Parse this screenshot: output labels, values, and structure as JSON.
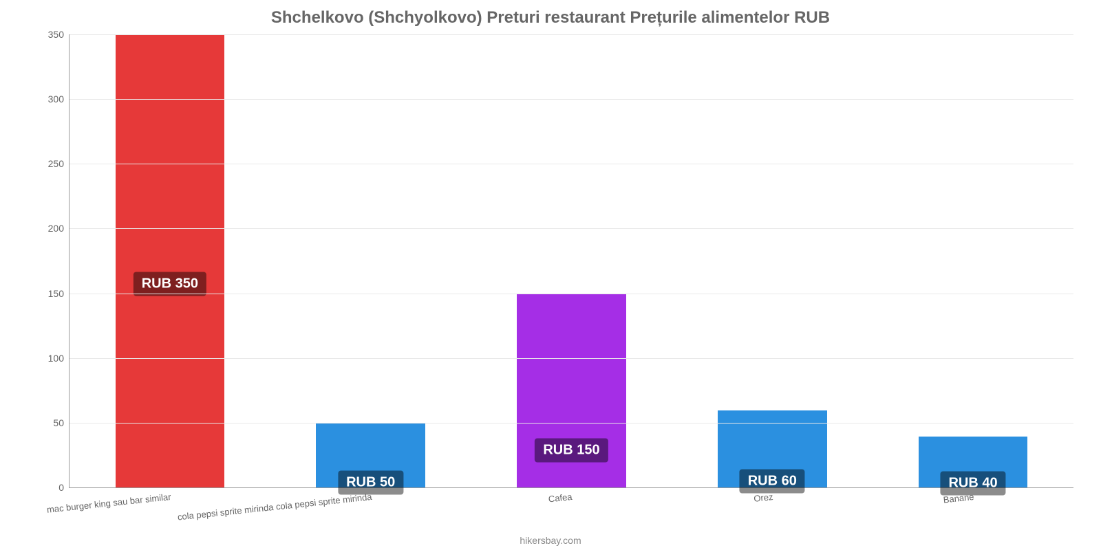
{
  "chart": {
    "type": "bar",
    "title": "Shchelkovo (Shchyolkovo) Preturi restaurant Prețurile alimentelor RUB",
    "title_color": "#666666",
    "title_fontsize": 24,
    "background_color": "#ffffff",
    "ylim": [
      0,
      350
    ],
    "ytick_step": 50,
    "ytick_labels": [
      "0",
      "50",
      "100",
      "150",
      "200",
      "250",
      "300",
      "350"
    ],
    "grid_color": "#e8e8e8",
    "axis_color": "#999999",
    "bar_width_ratio": 0.55,
    "value_label_fontsize": 20,
    "value_label_bg": "rgba(0,0,0,0.45)",
    "value_label_color": "#ffffff",
    "xtick_fontsize": 13,
    "xtick_color": "#666666",
    "xtick_rotate_deg": -6,
    "categories": [
      {
        "label": "mac burger king sau bar similar",
        "value": 350,
        "value_label": "RUB 350",
        "color": "#e63939"
      },
      {
        "label": "cola pepsi sprite mirinda cola pepsi sprite mirinda",
        "value": 50,
        "value_label": "RUB 50",
        "color": "#2b90e0"
      },
      {
        "label": "Cafea",
        "value": 150,
        "value_label": "RUB 150",
        "color": "#a52ee6"
      },
      {
        "label": "Orez",
        "value": 60,
        "value_label": "RUB 60",
        "color": "#2b90e0"
      },
      {
        "label": "Banane",
        "value": 40,
        "value_label": "RUB 40",
        "color": "#2b90e0"
      }
    ],
    "attribution": "hikersbay.com",
    "attribution_color": "#888888",
    "attribution_fontsize": 14
  }
}
